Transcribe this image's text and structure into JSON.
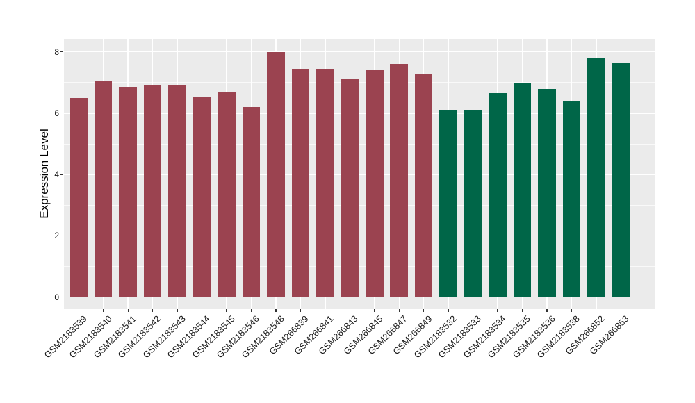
{
  "chart_data": {
    "type": "bar",
    "title": "",
    "ylabel": "Expression Level",
    "xlabel": "",
    "categories": [
      "GSM2183539",
      "GSM2183540",
      "GSM2183541",
      "GSM2183542",
      "GSM2183543",
      "GSM2183544",
      "GSM2183545",
      "GSM2183546",
      "GSM2183548",
      "GSM266839",
      "GSM266841",
      "GSM266843",
      "GSM266845",
      "GSM266847",
      "GSM266849",
      "GSM2183532",
      "GSM2183533",
      "GSM2183534",
      "GSM2183535",
      "GSM2183536",
      "GSM2183538",
      "GSM266852",
      "GSM266853"
    ],
    "values": [
      6.5,
      7.05,
      6.85,
      6.9,
      6.9,
      6.55,
      6.7,
      6.2,
      8.0,
      7.45,
      7.45,
      7.1,
      7.4,
      7.6,
      7.3,
      6.1,
      6.1,
      6.65,
      7.0,
      6.8,
      6.4,
      7.8,
      7.65
    ],
    "bar_colors": [
      "#9B4350",
      "#9B4350",
      "#9B4350",
      "#9B4350",
      "#9B4350",
      "#9B4350",
      "#9B4350",
      "#9B4350",
      "#9B4350",
      "#9B4350",
      "#9B4350",
      "#9B4350",
      "#9B4350",
      "#9B4350",
      "#9B4350",
      "#006648",
      "#006648",
      "#006648",
      "#006648",
      "#006648",
      "#006648",
      "#006648",
      "#006648"
    ],
    "groups": [
      {
        "color": "#9B4350",
        "count": 15
      },
      {
        "color": "#006648",
        "count": 8
      }
    ],
    "ylim": [
      0,
      8.4
    ],
    "ytick_values": [
      0,
      2,
      4,
      6,
      8
    ],
    "ytick_labels": [
      "0",
      "2",
      "4",
      "6",
      "8"
    ],
    "minor_gridline_values": [
      1,
      3,
      5,
      7
    ],
    "grid": "on",
    "legend_position": "none",
    "panel_bg": "#EBEBEB",
    "grid_color": "#FFFFFF",
    "figure_bg": "#FFFFFF"
  }
}
